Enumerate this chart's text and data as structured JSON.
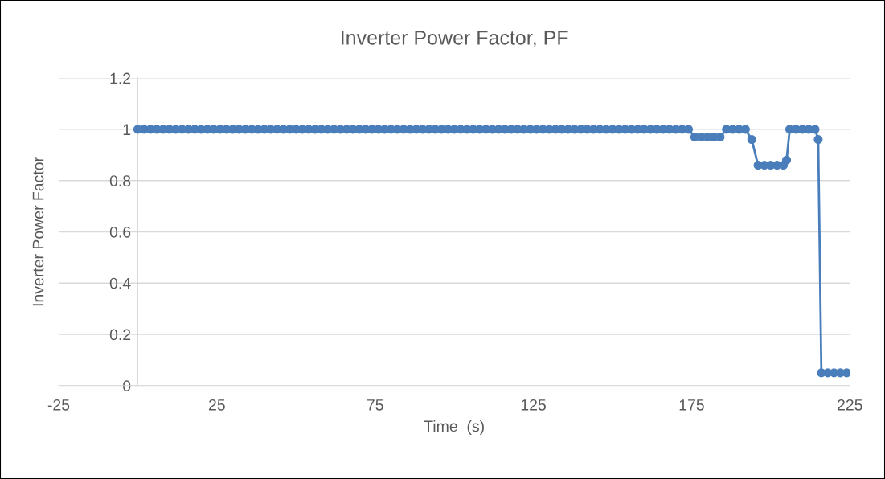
{
  "chart_data": {
    "type": "line",
    "title": "Inverter Power Factor, PF",
    "xlabel": "Time  (s)",
    "ylabel": "Inverter Power Factor",
    "series": [
      {
        "color": "#4a7ebb",
        "x": [
          0,
          2,
          4,
          6,
          8,
          10,
          12,
          14,
          16,
          18,
          20,
          22,
          24,
          26,
          28,
          30,
          32,
          34,
          36,
          38,
          40,
          42,
          44,
          46,
          48,
          50,
          52,
          54,
          56,
          58,
          60,
          62,
          64,
          66,
          68,
          70,
          72,
          74,
          76,
          78,
          80,
          82,
          84,
          86,
          88,
          90,
          92,
          94,
          96,
          98,
          100,
          102,
          104,
          106,
          108,
          110,
          112,
          114,
          116,
          118,
          120,
          122,
          124,
          126,
          128,
          130,
          132,
          134,
          136,
          138,
          140,
          142,
          144,
          146,
          148,
          150,
          152,
          154,
          156,
          158,
          160,
          162,
          164,
          166,
          168,
          170,
          172,
          174,
          176,
          178,
          180,
          182,
          184,
          186,
          188,
          190,
          192,
          194,
          196,
          198,
          200,
          202,
          204,
          205,
          206,
          208,
          210,
          212,
          214,
          215,
          216,
          218,
          220,
          222,
          224
        ],
        "values": [
          1,
          1,
          1,
          1,
          1,
          1,
          1,
          1,
          1,
          1,
          1,
          1,
          1,
          1,
          1,
          1,
          1,
          1,
          1,
          1,
          1,
          1,
          1,
          1,
          1,
          1,
          1,
          1,
          1,
          1,
          1,
          1,
          1,
          1,
          1,
          1,
          1,
          1,
          1,
          1,
          1,
          1,
          1,
          1,
          1,
          1,
          1,
          1,
          1,
          1,
          1,
          1,
          1,
          1,
          1,
          1,
          1,
          1,
          1,
          1,
          1,
          1,
          1,
          1,
          1,
          1,
          1,
          1,
          1,
          1,
          1,
          1,
          1,
          1,
          1,
          1,
          1,
          1,
          1,
          1,
          1,
          1,
          1,
          1,
          1,
          1,
          1,
          1,
          0.97,
          0.97,
          0.97,
          0.97,
          0.97,
          1,
          1,
          1,
          1,
          0.96,
          0.86,
          0.86,
          0.86,
          0.86,
          0.86,
          0.88,
          1,
          1,
          1,
          1,
          1,
          0.96,
          0.05,
          0.05,
          0.05,
          0.05,
          0.05
        ]
      }
    ],
    "xlim": [
      -25,
      225
    ],
    "xticks": [
      -25,
      25,
      75,
      125,
      175,
      225
    ],
    "ylim": [
      0,
      1.2
    ],
    "yticks": [
      0,
      0.2,
      0.4,
      0.6,
      0.8,
      1,
      1.2
    ],
    "grid": "y",
    "marker": "circle",
    "line_style": "solid"
  }
}
